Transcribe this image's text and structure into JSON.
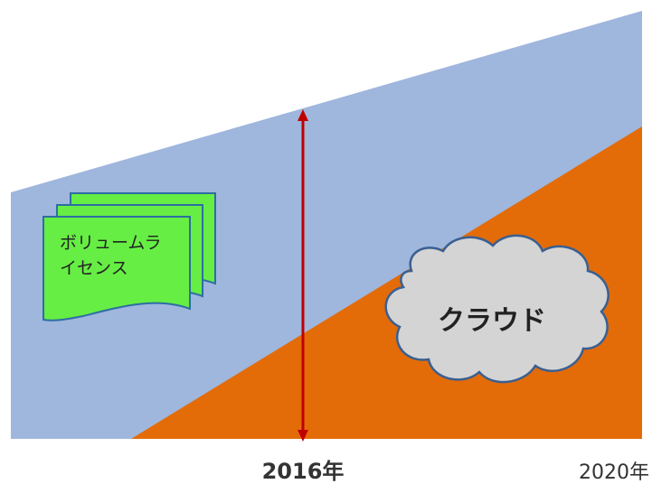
{
  "timeline": {
    "marker_label": "2016年",
    "end_label": "2020年"
  },
  "documents": {
    "label_line1": "ボリュームラ",
    "label_line2": "イセンス"
  },
  "cloud": {
    "label": "クラウド"
  },
  "colors": {
    "volume_area": "#9fb6dd",
    "cloud_area": "#e36c09",
    "marker_line": "#c00000",
    "document_fill": "#66ee44",
    "document_stroke": "#2d6ea3",
    "cloud_fill": "#d4d4d4",
    "cloud_stroke": "#3a5f91"
  }
}
